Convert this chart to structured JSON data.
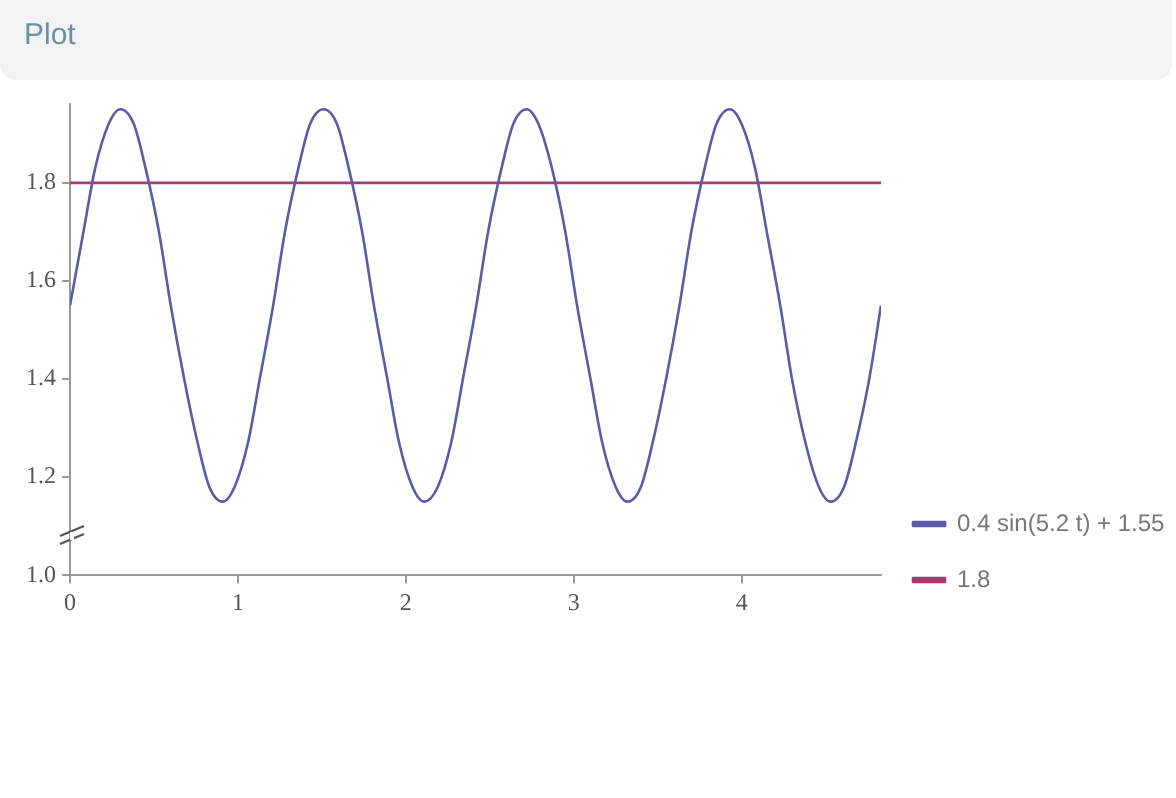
{
  "chart_data": {
    "type": "line",
    "title": "Plot",
    "series": [
      {
        "name": "0.4 sin(5.2 t) + 1.55",
        "color": "#5b5ba8",
        "x": [
          0,
          0.08,
          0.15,
          0.23,
          0.3,
          0.38,
          0.45,
          0.53,
          0.6,
          0.68,
          0.76,
          0.83,
          0.91,
          0.98,
          1.06,
          1.13,
          1.21,
          1.28,
          1.36,
          1.43,
          1.51,
          1.59,
          1.66,
          1.74,
          1.81,
          1.89,
          1.96,
          2.04,
          2.11,
          2.19,
          2.27,
          2.34,
          2.42,
          2.49,
          2.57,
          2.64,
          2.72,
          2.79,
          2.87,
          2.95,
          3.02,
          3.1,
          3.17,
          3.25,
          3.32,
          3.4,
          3.47,
          3.55,
          3.63,
          3.7,
          3.78,
          3.85,
          3.93,
          4,
          4.08,
          4.15,
          4.23,
          4.3,
          4.38,
          4.46,
          4.53,
          4.61,
          4.68,
          4.76,
          4.83
        ],
        "values": [
          1.55,
          1.7,
          1.83,
          1.92,
          1.95,
          1.92,
          1.83,
          1.7,
          1.55,
          1.4,
          1.27,
          1.18,
          1.15,
          1.18,
          1.27,
          1.4,
          1.55,
          1.7,
          1.83,
          1.92,
          1.95,
          1.92,
          1.83,
          1.7,
          1.55,
          1.4,
          1.27,
          1.18,
          1.15,
          1.18,
          1.27,
          1.4,
          1.55,
          1.7,
          1.83,
          1.92,
          1.95,
          1.92,
          1.83,
          1.7,
          1.55,
          1.4,
          1.27,
          1.18,
          1.15,
          1.18,
          1.27,
          1.4,
          1.55,
          1.7,
          1.83,
          1.92,
          1.95,
          1.92,
          1.83,
          1.7,
          1.55,
          1.4,
          1.27,
          1.18,
          1.15,
          1.18,
          1.27,
          1.4,
          1.55
        ]
      },
      {
        "name": "1.8",
        "color": "#a83a72",
        "x": [
          0,
          4.83
        ],
        "values": [
          1.8,
          1.8
        ]
      }
    ],
    "xlim": [
      0,
      4.83
    ],
    "xticks": [
      0,
      1,
      2,
      3,
      4
    ],
    "ylim": [
      1.0,
      1.96
    ],
    "yticks": [
      {
        "value": 1,
        "label": "1.0"
      },
      1.2,
      1.4,
      1.6,
      1.8
    ],
    "grid": false,
    "legend": "right",
    "marker": "none",
    "line_style": "solid"
  }
}
